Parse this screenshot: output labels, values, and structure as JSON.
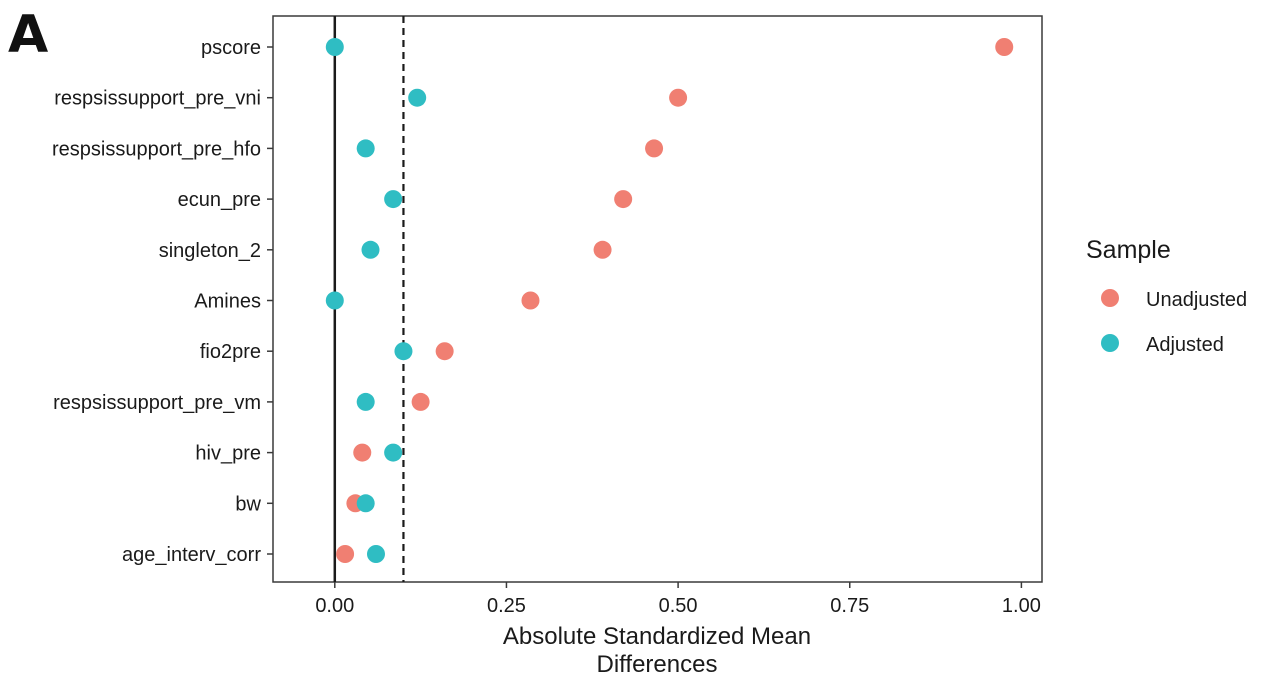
{
  "panel_label": "A",
  "chart_data": {
    "type": "scatter",
    "xlabel": [
      "Absolute Standardized Mean",
      "Differences"
    ],
    "ylabel": "",
    "xlim": [
      -0.09,
      1.03
    ],
    "x_ticks": [
      0.0,
      0.25,
      0.5,
      0.75,
      1.0
    ],
    "x_tick_labels": [
      "0.00",
      "0.25",
      "0.50",
      "0.75",
      "1.00"
    ],
    "threshold": 0.1,
    "grid": false,
    "categories": [
      "pscore",
      "respsissupport_pre_vni",
      "respsissupport_pre_hfo",
      "ecun_pre",
      "singleton_2",
      "Amines",
      "fio2pre",
      "respsissupport_pre_vm",
      "hiv_pre",
      "bw",
      "age_interv_corr"
    ],
    "series": [
      {
        "name": "Unadjusted",
        "color": "#F07F72",
        "values": [
          0.975,
          0.5,
          0.465,
          0.42,
          0.39,
          0.285,
          0.16,
          0.125,
          0.04,
          0.03,
          0.015
        ]
      },
      {
        "name": "Adjusted",
        "color": "#2FBDC3",
        "values": [
          0.0,
          0.12,
          0.045,
          0.085,
          0.052,
          0.0,
          0.1,
          0.045,
          0.085,
          0.045,
          0.06
        ]
      }
    ],
    "legend": {
      "title": "Sample",
      "position": "right"
    }
  }
}
